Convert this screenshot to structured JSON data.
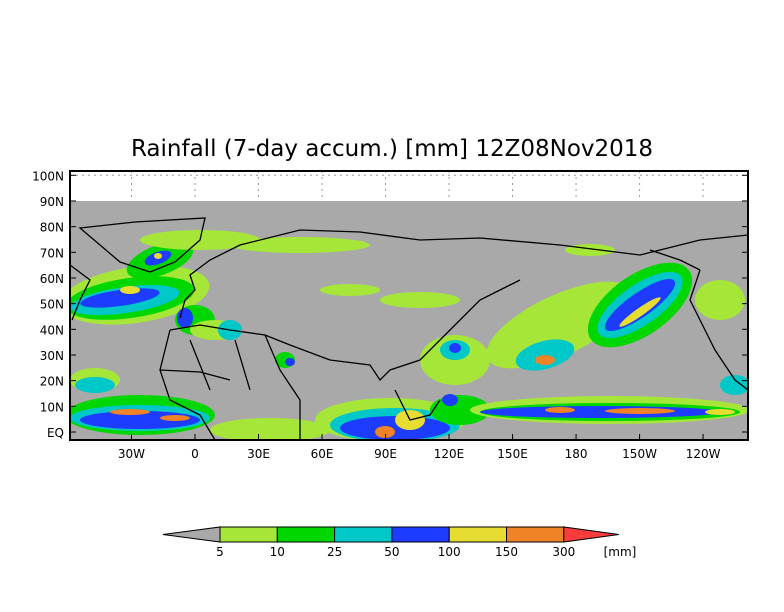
{
  "title": "Rainfall (7-day accum.) [mm] 12Z08Nov2018",
  "map": {
    "lat_labels": [
      "100N",
      "90N",
      "80N",
      "70N",
      "60N",
      "50N",
      "40N",
      "30N",
      "20N",
      "10N",
      "EQ"
    ],
    "lat_values": [
      100,
      90,
      80,
      70,
      60,
      50,
      40,
      30,
      20,
      10,
      0
    ],
    "lon_labels": [
      "30W",
      "0",
      "30E",
      "60E",
      "90E",
      "120E",
      "150E",
      "180",
      "150W",
      "120W"
    ],
    "lon_values": [
      -30,
      0,
      30,
      60,
      90,
      120,
      150,
      180,
      210,
      240
    ],
    "lon_range": [
      -59,
      260
    ],
    "lat_range": [
      -3,
      103
    ],
    "data_top_lat": 90,
    "missing_color": "#a9a9a9"
  },
  "colorbar": {
    "unit": "[mm]",
    "labels": [
      "5",
      "10",
      "25",
      "50",
      "100",
      "150",
      "300"
    ],
    "colors": [
      "#a9a9a9",
      "#a6e639",
      "#00d700",
      "#00c8c8",
      "#1e3cff",
      "#e6dc32",
      "#f08228",
      "#fa3c3c"
    ]
  }
}
